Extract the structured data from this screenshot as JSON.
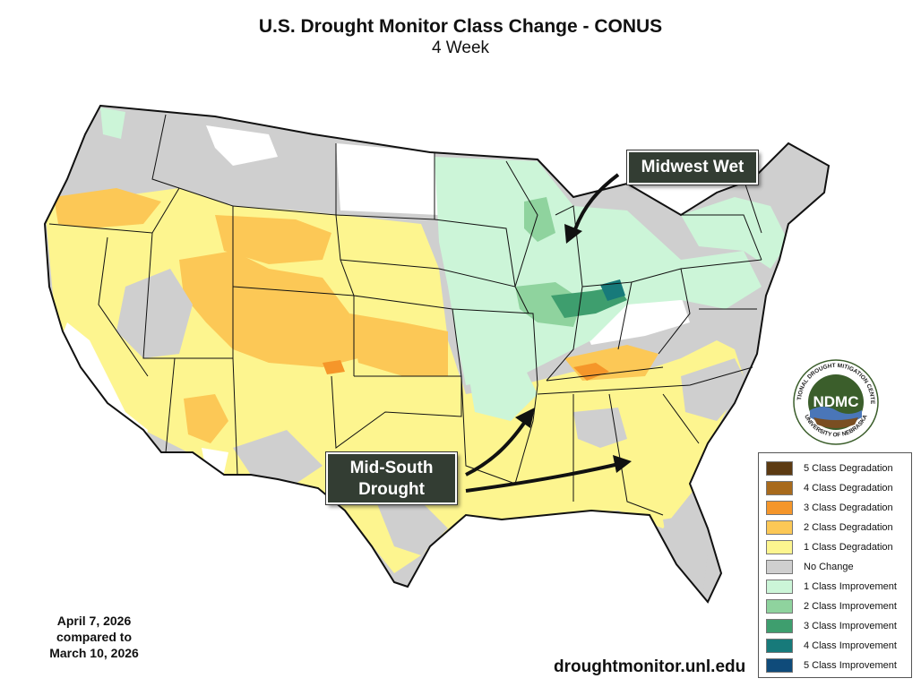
{
  "header": {
    "title": "U.S. Drought Monitor Class Change - CONUS",
    "subtitle": "4 Week"
  },
  "callouts": {
    "midwest": "Midwest Wet",
    "midsouth_line1": "Mid-South",
    "midsouth_line2": "Drought"
  },
  "legend": {
    "items": [
      {
        "label": "5 Class Degradation",
        "color": "#5c3a12"
      },
      {
        "label": "4 Class Degradation",
        "color": "#a86a1c"
      },
      {
        "label": "3 Class Degradation",
        "color": "#f5962a"
      },
      {
        "label": "2 Class Degradation",
        "color": "#fcc856"
      },
      {
        "label": "1 Class Degradation",
        "color": "#fdf58f"
      },
      {
        "label": "No Change",
        "color": "#cfcfcf"
      },
      {
        "label": "1 Class Improvement",
        "color": "#ccf5d8"
      },
      {
        "label": "2 Class Improvement",
        "color": "#8fd39e"
      },
      {
        "label": "3 Class Improvement",
        "color": "#3e9e6e"
      },
      {
        "label": "4 Class Improvement",
        "color": "#177a7a"
      },
      {
        "label": "5 Class Improvement",
        "color": "#0f4b7a"
      }
    ]
  },
  "dates": {
    "line1": "April 7, 2026",
    "line2": "compared to",
    "line3": "March 10, 2026"
  },
  "footer": {
    "url": "droughtmonitor.unl.edu"
  },
  "logo": {
    "text": "NDMC",
    "ring_top": "NATIONAL DROUGHT MITIGATION CENTER",
    "ring_bottom": "UNIVERSITY OF NEBRASKA",
    "color": "#3b5e2b"
  }
}
